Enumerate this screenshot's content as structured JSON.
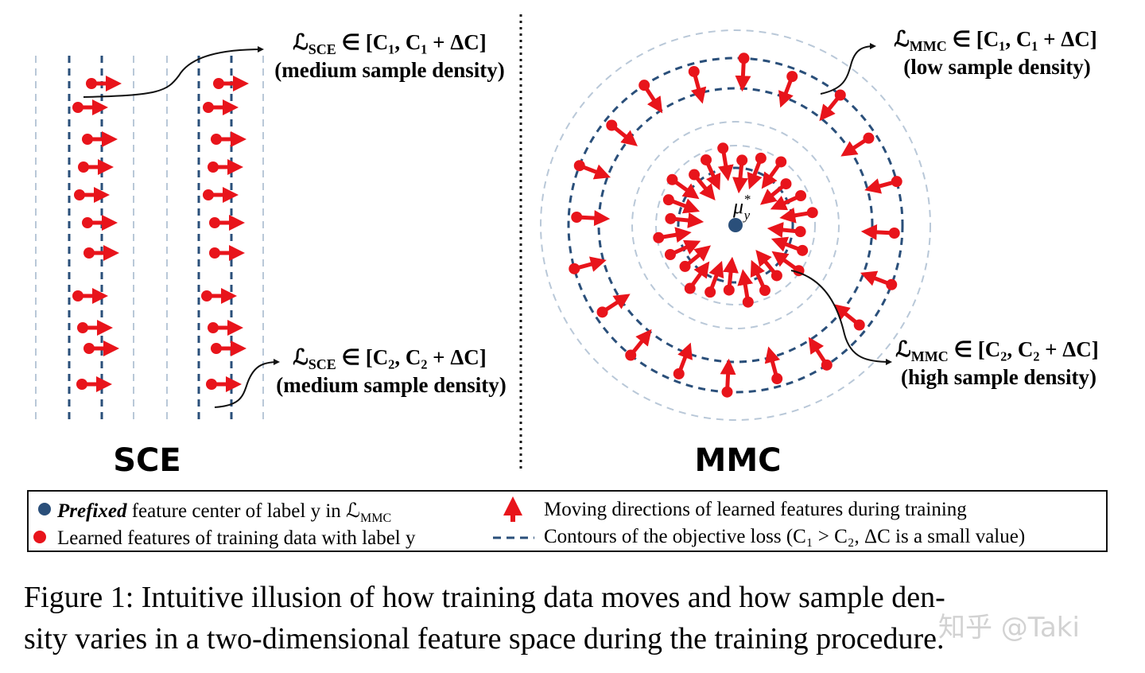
{
  "annotations": {
    "sce_c1": {
      "symbol": "ℒ",
      "subscript": "SCE",
      "range": "∈ [C₁, C₁ + ΔC]",
      "density": "(medium sample density)"
    },
    "sce_c2": {
      "symbol": "ℒ",
      "subscript": "SCE",
      "range": "∈ [C₂, C₂ + ΔC]",
      "density": "(medium sample density)"
    },
    "mmc_c1": {
      "symbol": "ℒ",
      "subscript": "MMC",
      "range": "∈ [C₁, C₁ + ΔC]",
      "density": "(low sample density)"
    },
    "mmc_c2": {
      "symbol": "ℒ",
      "subscript": "MMC",
      "range": "∈ [C₂, C₂ + ΔC]",
      "density": "(high sample density)"
    }
  },
  "panels": {
    "left": "SCE",
    "right": "MMC"
  },
  "center_label": {
    "symbol": "μ",
    "superscript": "*",
    "subscript": "y"
  },
  "legend": {
    "center": {
      "emphasis": "Prefixed",
      "text": "feature center of label y in ℒ",
      "subscript": "MMC"
    },
    "features": "Learned features of training data with label y",
    "directions": "Moving directions of learned features during training",
    "contours": "Contours of the objective loss (C₁ > C₂, ΔC is a small value)"
  },
  "caption": {
    "lines": [
      "Figure 1: Intuitive illusion of how training data moves and how sample den-",
      "sity varies in a two-dimensional feature space during the training procedure."
    ]
  },
  "watermark": "知乎 @Taki"
}
